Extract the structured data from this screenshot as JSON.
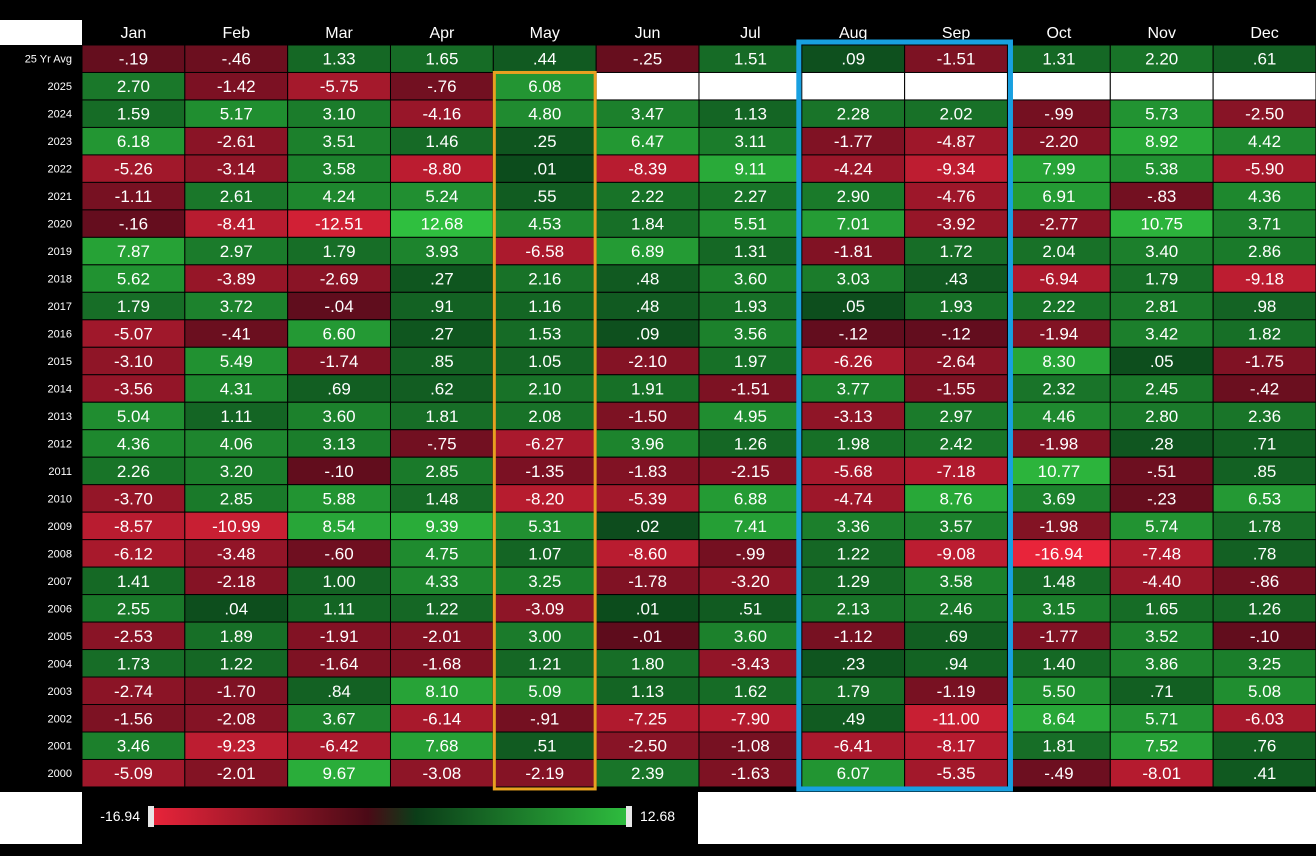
{
  "chart_data": {
    "type": "heatmap",
    "columns": [
      "Jan",
      "Feb",
      "Mar",
      "Apr",
      "May",
      "Jun",
      "Jul",
      "Aug",
      "Sep",
      "Oct",
      "Nov",
      "Dec"
    ],
    "rows": [
      {
        "label": "25 Yr Avg",
        "values": [
          "-.19",
          "-.46",
          "1.33",
          "1.65",
          ".44",
          "-.25",
          "1.51",
          ".09",
          "-1.51",
          "1.31",
          "2.20",
          ".61"
        ]
      },
      {
        "label": "2025",
        "values": [
          "2.70",
          "-1.42",
          "-5.75",
          "-.76",
          "6.08",
          null,
          null,
          null,
          null,
          null,
          null,
          null
        ]
      },
      {
        "label": "2024",
        "values": [
          "1.59",
          "5.17",
          "3.10",
          "-4.16",
          "4.80",
          "3.47",
          "1.13",
          "2.28",
          "2.02",
          "-.99",
          "5.73",
          "-2.50"
        ]
      },
      {
        "label": "2023",
        "values": [
          "6.18",
          "-2.61",
          "3.51",
          "1.46",
          ".25",
          "6.47",
          "3.11",
          "-1.77",
          "-4.87",
          "-2.20",
          "8.92",
          "4.42"
        ]
      },
      {
        "label": "2022",
        "values": [
          "-5.26",
          "-3.14",
          "3.58",
          "-8.80",
          ".01",
          "-8.39",
          "9.11",
          "-4.24",
          "-9.34",
          "7.99",
          "5.38",
          "-5.90"
        ]
      },
      {
        "label": "2021",
        "values": [
          "-1.11",
          "2.61",
          "4.24",
          "5.24",
          ".55",
          "2.22",
          "2.27",
          "2.90",
          "-4.76",
          "6.91",
          "-.83",
          "4.36"
        ]
      },
      {
        "label": "2020",
        "values": [
          "-.16",
          "-8.41",
          "-12.51",
          "12.68",
          "4.53",
          "1.84",
          "5.51",
          "7.01",
          "-3.92",
          "-2.77",
          "10.75",
          "3.71"
        ]
      },
      {
        "label": "2019",
        "values": [
          "7.87",
          "2.97",
          "1.79",
          "3.93",
          "-6.58",
          "6.89",
          "1.31",
          "-1.81",
          "1.72",
          "2.04",
          "3.40",
          "2.86"
        ]
      },
      {
        "label": "2018",
        "values": [
          "5.62",
          "-3.89",
          "-2.69",
          ".27",
          "2.16",
          ".48",
          "3.60",
          "3.03",
          ".43",
          "-6.94",
          "1.79",
          "-9.18"
        ]
      },
      {
        "label": "2017",
        "values": [
          "1.79",
          "3.72",
          "-.04",
          ".91",
          "1.16",
          ".48",
          "1.93",
          ".05",
          "1.93",
          "2.22",
          "2.81",
          ".98"
        ]
      },
      {
        "label": "2016",
        "values": [
          "-5.07",
          "-.41",
          "6.60",
          ".27",
          "1.53",
          ".09",
          "3.56",
          "-.12",
          "-.12",
          "-1.94",
          "3.42",
          "1.82"
        ]
      },
      {
        "label": "2015",
        "values": [
          "-3.10",
          "5.49",
          "-1.74",
          ".85",
          "1.05",
          "-2.10",
          "1.97",
          "-6.26",
          "-2.64",
          "8.30",
          ".05",
          "-1.75"
        ]
      },
      {
        "label": "2014",
        "values": [
          "-3.56",
          "4.31",
          ".69",
          ".62",
          "2.10",
          "1.91",
          "-1.51",
          "3.77",
          "-1.55",
          "2.32",
          "2.45",
          "-.42"
        ]
      },
      {
        "label": "2013",
        "values": [
          "5.04",
          "1.11",
          "3.60",
          "1.81",
          "2.08",
          "-1.50",
          "4.95",
          "-3.13",
          "2.97",
          "4.46",
          "2.80",
          "2.36"
        ]
      },
      {
        "label": "2012",
        "values": [
          "4.36",
          "4.06",
          "3.13",
          "-.75",
          "-6.27",
          "3.96",
          "1.26",
          "1.98",
          "2.42",
          "-1.98",
          ".28",
          ".71"
        ]
      },
      {
        "label": "2011",
        "values": [
          "2.26",
          "3.20",
          "-.10",
          "2.85",
          "-1.35",
          "-1.83",
          "-2.15",
          "-5.68",
          "-7.18",
          "10.77",
          "-.51",
          ".85"
        ]
      },
      {
        "label": "2010",
        "values": [
          "-3.70",
          "2.85",
          "5.88",
          "1.48",
          "-8.20",
          "-5.39",
          "6.88",
          "-4.74",
          "8.76",
          "3.69",
          "-.23",
          "6.53"
        ]
      },
      {
        "label": "2009",
        "values": [
          "-8.57",
          "-10.99",
          "8.54",
          "9.39",
          "5.31",
          ".02",
          "7.41",
          "3.36",
          "3.57",
          "-1.98",
          "5.74",
          "1.78"
        ]
      },
      {
        "label": "2008",
        "values": [
          "-6.12",
          "-3.48",
          "-.60",
          "4.75",
          "1.07",
          "-8.60",
          "-.99",
          "1.22",
          "-9.08",
          "-16.94",
          "-7.48",
          ".78"
        ]
      },
      {
        "label": "2007",
        "values": [
          "1.41",
          "-2.18",
          "1.00",
          "4.33",
          "3.25",
          "-1.78",
          "-3.20",
          "1.29",
          "3.58",
          "1.48",
          "-4.40",
          "-.86"
        ]
      },
      {
        "label": "2006",
        "values": [
          "2.55",
          ".04",
          "1.11",
          "1.22",
          "-3.09",
          ".01",
          ".51",
          "2.13",
          "2.46",
          "3.15",
          "1.65",
          "1.26"
        ]
      },
      {
        "label": "2005",
        "values": [
          "-2.53",
          "1.89",
          "-1.91",
          "-2.01",
          "3.00",
          "-.01",
          "3.60",
          "-1.12",
          ".69",
          "-1.77",
          "3.52",
          "-.10"
        ]
      },
      {
        "label": "2004",
        "values": [
          "1.73",
          "1.22",
          "-1.64",
          "-1.68",
          "1.21",
          "1.80",
          "-3.43",
          ".23",
          ".94",
          "1.40",
          "3.86",
          "3.25"
        ]
      },
      {
        "label": "2003",
        "values": [
          "-2.74",
          "-1.70",
          ".84",
          "8.10",
          "5.09",
          "1.13",
          "1.62",
          "1.79",
          "-1.19",
          "5.50",
          ".71",
          "5.08"
        ]
      },
      {
        "label": "2002",
        "values": [
          "-1.56",
          "-2.08",
          "3.67",
          "-6.14",
          "-.91",
          "-7.25",
          "-7.90",
          ".49",
          "-11.00",
          "8.64",
          "5.71",
          "-6.03"
        ]
      },
      {
        "label": "2001",
        "values": [
          "3.46",
          "-9.23",
          "-6.42",
          "7.68",
          ".51",
          "-2.50",
          "-1.08",
          "-6.41",
          "-8.17",
          "1.81",
          "7.52",
          ".76"
        ]
      },
      {
        "label": "2000",
        "values": [
          "-5.09",
          "-2.01",
          "9.67",
          "-3.08",
          "-2.19",
          "2.39",
          "-1.63",
          "6.07",
          "-5.35",
          "-.49",
          "-8.01",
          ".41"
        ]
      }
    ],
    "scale": {
      "min": "-16.94",
      "max": "12.68"
    },
    "colors": {
      "negative_strong": "#e8243a",
      "negative_weak": "#5c0c1c",
      "positive_weak": "#0c4a1c",
      "positive_strong": "#2fbf3f",
      "empty": "#ffffff",
      "highlight_may": "#e8a020",
      "highlight_aug_sep": "#18a0e0"
    },
    "highlights": [
      {
        "columns": [
          "May"
        ],
        "color": "#e8a020"
      },
      {
        "columns": [
          "Aug",
          "Sep"
        ],
        "color": "#18a0e0"
      }
    ]
  }
}
